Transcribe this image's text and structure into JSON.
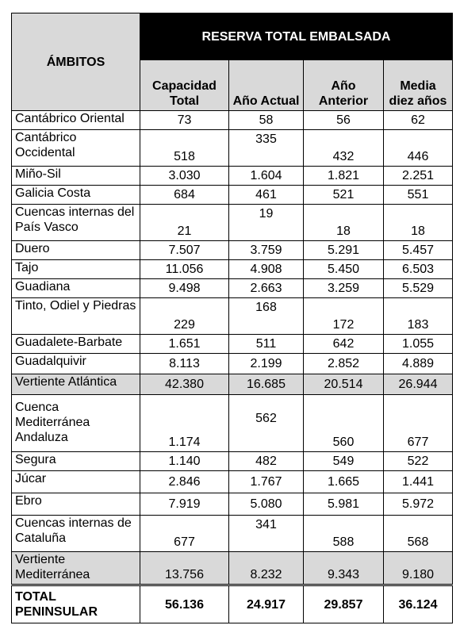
{
  "header": {
    "ambitos": "ÁMBITOS",
    "reserva": "RESERVA TOTAL EMBALSADA",
    "columns": [
      "Capacidad Total",
      "Año Actual",
      "Año Anterior",
      "Media diez años"
    ]
  },
  "rows": [
    {
      "name": "Cantábrico Oriental",
      "values": [
        "73",
        "58",
        "56",
        "62"
      ]
    },
    {
      "name": "Cantábrico Occidental",
      "values": [
        "518",
        "335",
        "432",
        "446"
      ]
    },
    {
      "name": "Miño-Sil",
      "values": [
        "3.030",
        "1.604",
        "1.821",
        "2.251"
      ]
    },
    {
      "name": "Galicia Costa",
      "values": [
        "684",
        "461",
        "521",
        "551"
      ]
    },
    {
      "name": "Cuencas internas del País Vasco",
      "values": [
        "21",
        "19",
        "18",
        "18"
      ]
    },
    {
      "name": "Duero",
      "values": [
        "7.507",
        "3.759",
        "5.291",
        "5.457"
      ]
    },
    {
      "name": "Tajo",
      "values": [
        "11.056",
        "4.908",
        "5.450",
        "6.503"
      ]
    },
    {
      "name": "Guadiana",
      "values": [
        "9.498",
        "2.663",
        "3.259",
        "5.529"
      ]
    },
    {
      "name": "Tinto, Odiel y Piedras",
      "values": [
        "229",
        "168",
        "172",
        "183"
      ]
    },
    {
      "name": "Guadalete-Barbate",
      "values": [
        "1.651",
        "511",
        "642",
        "1.055"
      ]
    },
    {
      "name": "Guadalquivir",
      "values": [
        "8.113",
        "2.199",
        "2.852",
        "4.889"
      ]
    },
    {
      "name": "Vertiente Atlántica",
      "values": [
        "42.380",
        "16.685",
        "20.514",
        "26.944"
      ]
    },
    {
      "name": "Cuenca Mediterránea Andaluza",
      "values": [
        "1.174",
        "562",
        "560",
        "677"
      ]
    },
    {
      "name": "Segura",
      "values": [
        "1.140",
        "482",
        "549",
        "522"
      ]
    },
    {
      "name": "Júcar",
      "values": [
        "2.846",
        "1.767",
        "1.665",
        "1.441"
      ]
    },
    {
      "name": "Ebro",
      "values": [
        "7.919",
        "5.080",
        "5.981",
        "5.972"
      ]
    },
    {
      "name": "Cuencas internas de Cataluña",
      "values": [
        "677",
        "341",
        "588",
        "568"
      ]
    },
    {
      "name": "Vertiente Mediterránea",
      "values": [
        "13.756",
        "8.232",
        "9.343",
        "9.180"
      ]
    },
    {
      "name": "TOTAL PENINSULAR",
      "values": [
        "56.136",
        "24.917",
        "29.857",
        "36.124"
      ]
    }
  ]
}
